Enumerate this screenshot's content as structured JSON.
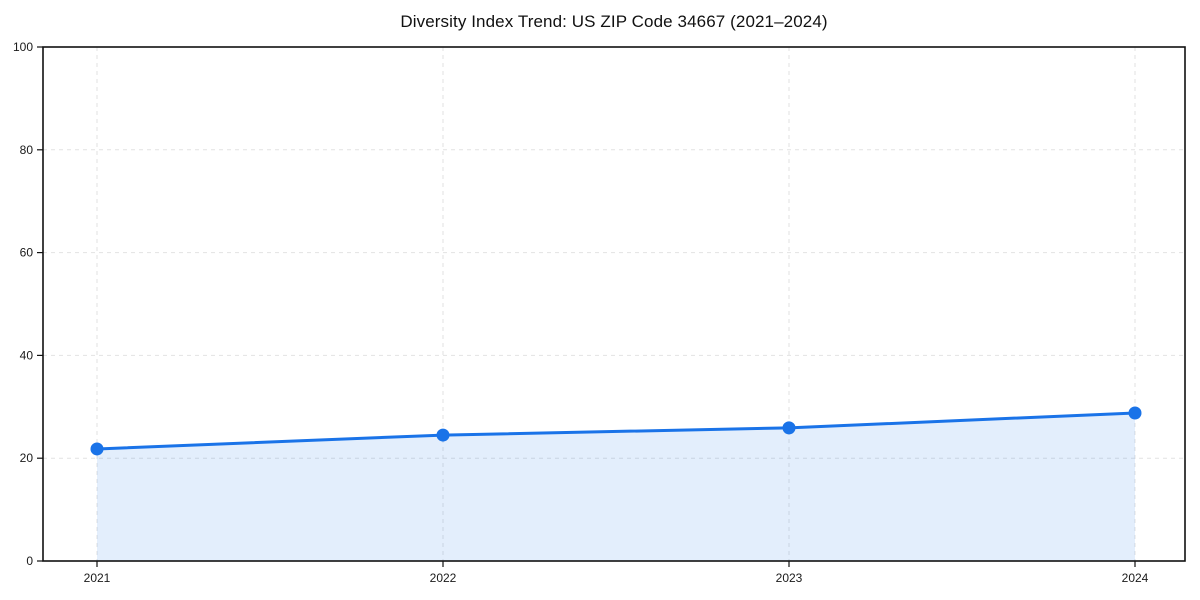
{
  "chart_data": {
    "type": "line",
    "title": "Diversity Index Trend: US ZIP Code 34667 (2021–2024)",
    "categories": [
      "2021",
      "2022",
      "2023",
      "2024"
    ],
    "values": [
      21.8,
      24.5,
      25.9,
      28.8
    ],
    "series_name": "Diversity Index",
    "xlabel": "",
    "ylabel": "",
    "ylim": [
      0,
      100
    ],
    "yticks": [
      0,
      20,
      40,
      60,
      80,
      100
    ],
    "grid": "dashed",
    "legend": "none",
    "line_color": "#1a73e8",
    "marker_color": "#1a73e8",
    "fill_color": "rgba(26,115,232,0.12)",
    "grid_color": "#e2e2e2",
    "spine_color": "#111111",
    "background_color": "#ffffff"
  }
}
